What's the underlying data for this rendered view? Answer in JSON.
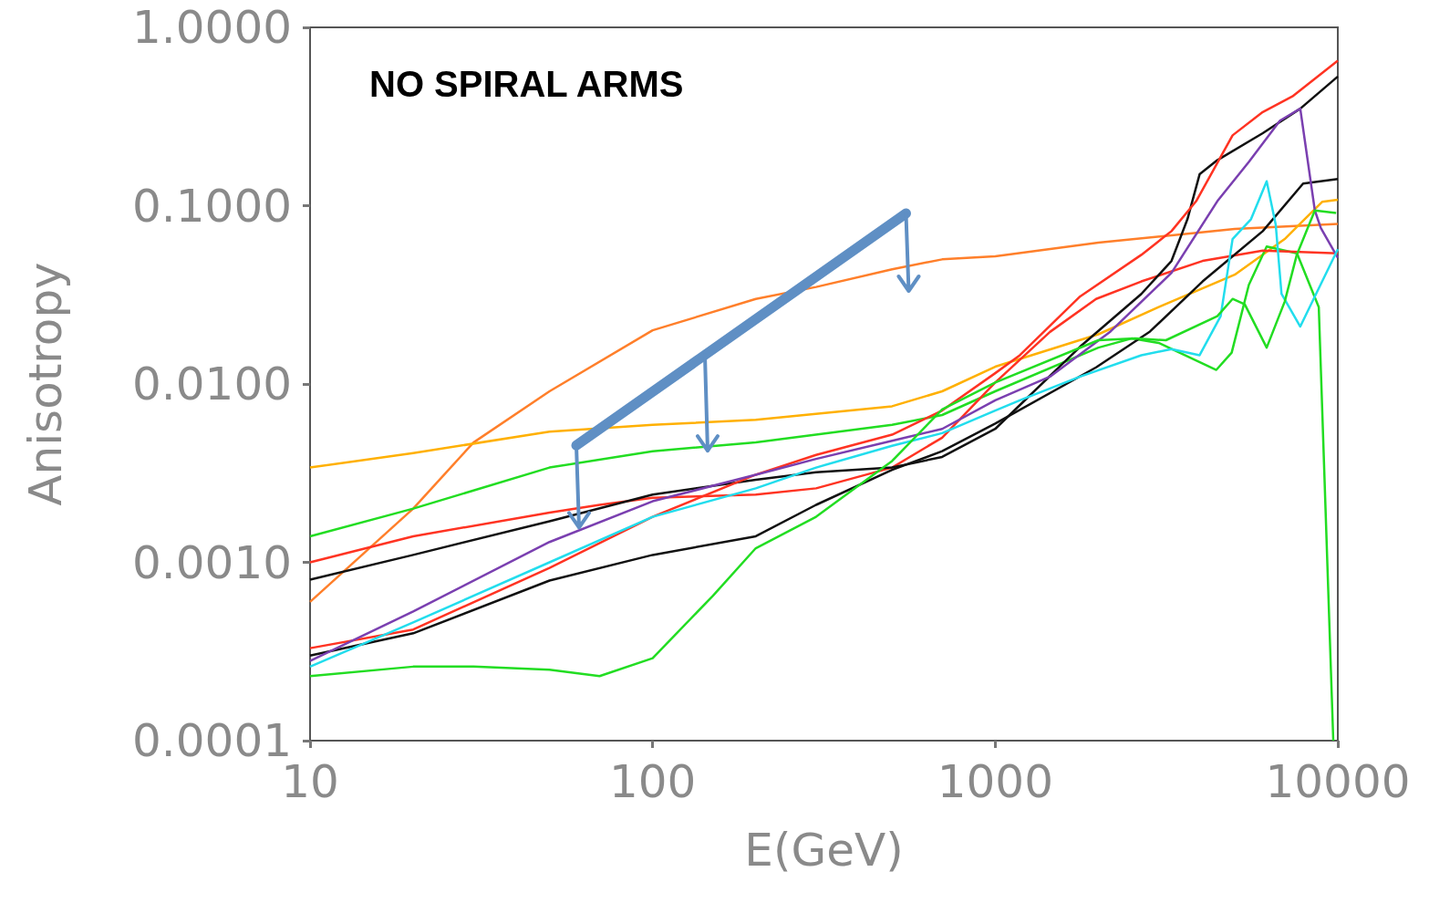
{
  "chart_data": {
    "type": "line",
    "xlabel": "E(GeV)",
    "ylabel": "Anisotropy",
    "annotations": [
      "NO SPIRAL ARMS"
    ],
    "log": "xy",
    "grid": false,
    "xlim": [
      10,
      10000
    ],
    "ylim": [
      0.0001,
      1
    ],
    "xticks": [
      10,
      100,
      1000,
      10000
    ],
    "yticks": [
      {
        "value": 0.0001,
        "label": "0.0001"
      },
      {
        "value": 0.001,
        "label": "0.0010"
      },
      {
        "value": 0.01,
        "label": "0.0100"
      },
      {
        "value": 0.1,
        "label": "0.1000"
      },
      {
        "value": 1,
        "label": "1.0000"
      }
    ],
    "series": [
      {
        "color": "#ff7f2a",
        "x": [
          10,
          20,
          30,
          50,
          100,
          200,
          300,
          500,
          700,
          1000,
          2000,
          5000,
          10000
        ],
        "values": [
          0.0006,
          0.002,
          0.0047,
          0.0091,
          0.02,
          0.03,
          0.035,
          0.044,
          0.05,
          0.052,
          0.062,
          0.074,
          0.079
        ]
      },
      {
        "color": "#ffb000",
        "x": [
          10,
          20,
          50,
          100,
          200,
          500,
          700,
          1000,
          2000,
          3000,
          5000,
          7000,
          8000,
          9000,
          10000
        ],
        "values": [
          0.0034,
          0.0041,
          0.0054,
          0.0059,
          0.0063,
          0.0075,
          0.0091,
          0.0125,
          0.019,
          0.027,
          0.041,
          0.065,
          0.084,
          0.105,
          0.108
        ]
      },
      {
        "color": "#22dd22",
        "x": [
          10,
          20,
          50,
          100,
          200,
          500,
          700,
          1000,
          2000,
          2500,
          3000,
          4420,
          4900,
          5500,
          6200,
          7600,
          8800,
          9700
        ],
        "values": [
          0.0014,
          0.002,
          0.0034,
          0.0042,
          0.0047,
          0.0059,
          0.0067,
          0.0091,
          0.016,
          0.018,
          0.017,
          0.012,
          0.015,
          0.036,
          0.059,
          0.054,
          0.027,
          0.0001
        ]
      },
      {
        "color": "#ff3322",
        "x": [
          10,
          20,
          50,
          70,
          100,
          200,
          300,
          500,
          700,
          1000,
          1445,
          1970,
          2670,
          4030,
          6040,
          10000
        ],
        "values": [
          0.001,
          0.0014,
          0.0019,
          0.0021,
          0.0023,
          0.0024,
          0.0026,
          0.0034,
          0.005,
          0.0102,
          0.0196,
          0.03,
          0.0376,
          0.049,
          0.056,
          0.054
        ]
      },
      {
        "color": "#111111",
        "x": [
          10,
          20,
          50,
          100,
          200,
          300,
          500,
          700,
          1000,
          1770,
          2670,
          3270,
          3640,
          3950,
          4450,
          6040,
          7770,
          10000
        ],
        "values": [
          0.0008,
          0.0011,
          0.0017,
          0.0024,
          0.0029,
          0.0032,
          0.0034,
          0.0039,
          0.0056,
          0.0162,
          0.032,
          0.049,
          0.084,
          0.15,
          0.18,
          0.255,
          0.35,
          0.53
        ]
      },
      {
        "color": "#ff3322",
        "x": [
          10,
          20,
          50,
          100,
          200,
          300,
          500,
          700,
          1000,
          1180,
          1770,
          2670,
          3270,
          3860,
          4930,
          6040,
          7370,
          10000
        ],
        "values": [
          0.00033,
          0.00042,
          0.00093,
          0.0018,
          0.0031,
          0.004,
          0.0052,
          0.0071,
          0.0115,
          0.0145,
          0.031,
          0.053,
          0.072,
          0.106,
          0.248,
          0.335,
          0.41,
          0.65
        ]
      },
      {
        "color": "#111111",
        "x": [
          10,
          20,
          50,
          100,
          200,
          300,
          500,
          700,
          1000,
          1970,
          2830,
          4030,
          6040,
          7920,
          10000
        ],
        "values": [
          0.0003,
          0.0004,
          0.00079,
          0.0011,
          0.0014,
          0.0021,
          0.0033,
          0.0042,
          0.006,
          0.0124,
          0.0197,
          0.0376,
          0.072,
          0.133,
          0.141
        ]
      },
      {
        "color": "#7a3fb0",
        "x": [
          10,
          20,
          50,
          100,
          200,
          300,
          500,
          700,
          1000,
          1445,
          2170,
          3270,
          4450,
          5500,
          6780,
          7770,
          8570,
          8920,
          10000
        ],
        "values": [
          0.00028,
          0.00053,
          0.0013,
          0.0022,
          0.0031,
          0.0038,
          0.0048,
          0.0056,
          0.0081,
          0.011,
          0.0197,
          0.042,
          0.106,
          0.176,
          0.3,
          0.35,
          0.094,
          0.075,
          0.051
        ]
      },
      {
        "color": "#22dded",
        "x": [
          10,
          20,
          50,
          100,
          200,
          300,
          500,
          700,
          1000,
          1180,
          1770,
          2670,
          3270,
          3950,
          4550,
          4930,
          5580,
          6200,
          6590,
          6850,
          7770,
          8570,
          10000
        ],
        "values": [
          0.00026,
          0.00046,
          0.001,
          0.0018,
          0.0026,
          0.0034,
          0.0045,
          0.0053,
          0.0071,
          0.0081,
          0.011,
          0.0145,
          0.0157,
          0.0145,
          0.024,
          0.065,
          0.084,
          0.137,
          0.078,
          0.032,
          0.021,
          0.031,
          0.057
        ]
      },
      {
        "color": "#22dd22",
        "x": [
          10,
          20,
          30,
          50,
          70,
          100,
          150,
          200,
          300,
          500,
          700,
          1000,
          2000,
          2560,
          3150,
          4450,
          4930,
          5350,
          6200,
          7000,
          7590,
          8570,
          9890
        ],
        "values": [
          0.00023,
          0.00026,
          0.00026,
          0.00025,
          0.00023,
          0.00029,
          0.00065,
          0.0012,
          0.0018,
          0.0037,
          0.0072,
          0.0102,
          0.0176,
          0.018,
          0.0176,
          0.024,
          0.03,
          0.028,
          0.016,
          0.029,
          0.053,
          0.094,
          0.091
        ]
      }
    ]
  }
}
